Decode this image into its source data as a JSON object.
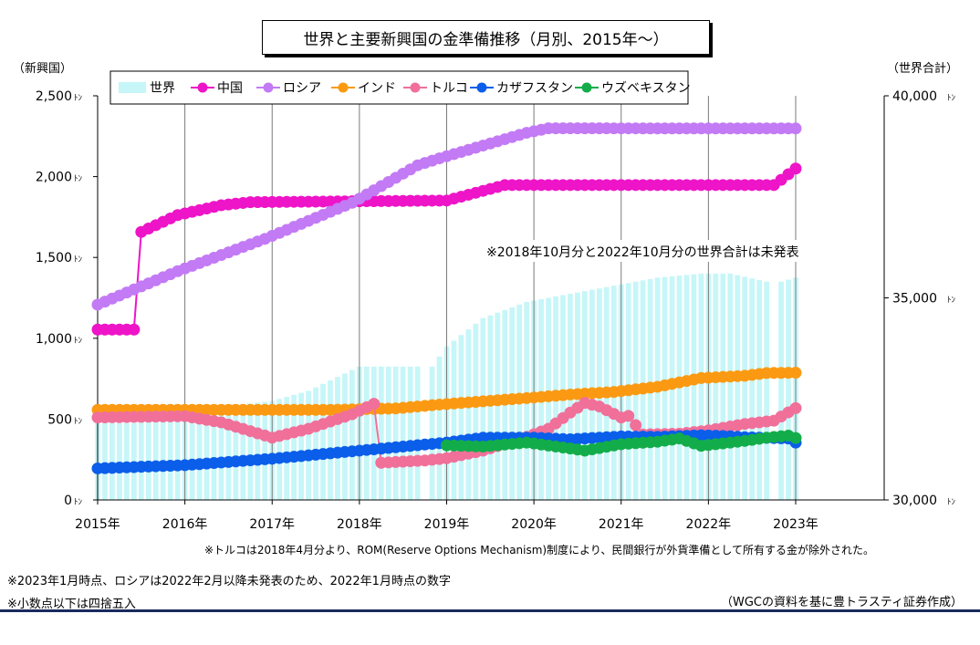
{
  "chart_data": {
    "type": "line",
    "title": "世界と主要新興国の金準備推移（月別、2015年～）",
    "y_left_label": "（新興国）",
    "y_right_label": "（世界合計）",
    "y_left_unit": "ﾄﾝ",
    "y_right_unit": "ﾄﾝ",
    "ylim_left": [
      0,
      2500
    ],
    "ylim_right": [
      30000,
      40000
    ],
    "y_left_ticks": [
      "0",
      "500",
      "1,000",
      "1,500",
      "2,000",
      "2,500"
    ],
    "y_right_ticks": [
      "30,000",
      "35,000",
      "40,000"
    ],
    "x_ticks": [
      "2015年",
      "2016年",
      "2017年",
      "2018年",
      "2019年",
      "2020年",
      "2021年",
      "2022年",
      "2023年"
    ],
    "x_range": [
      "2015-01",
      "2023-01"
    ],
    "grid": "vertical",
    "legend_position": "top",
    "bar_series": {
      "name": "世界",
      "color": "#c6f6f8",
      "axis": "right",
      "missing": [
        "2018-10",
        "2022-10"
      ],
      "anchors": [
        [
          "2015-01",
          31900
        ],
        [
          "2015-06",
          31900
        ],
        [
          "2015-07",
          32200
        ],
        [
          "2016-01",
          32150
        ],
        [
          "2016-06",
          32300
        ],
        [
          "2017-01",
          32450
        ],
        [
          "2017-06",
          32700
        ],
        [
          "2018-01",
          33300
        ],
        [
          "2018-06",
          33300
        ],
        [
          "2018-11",
          33300
        ],
        [
          "2019-01",
          33800
        ],
        [
          "2019-06",
          34500
        ],
        [
          "2019-12",
          34900
        ],
        [
          "2020-06",
          35100
        ],
        [
          "2020-12",
          35300
        ],
        [
          "2021-06",
          35500
        ],
        [
          "2021-12",
          35600
        ],
        [
          "2022-04",
          35600
        ],
        [
          "2022-09",
          35400
        ],
        [
          "2022-11",
          35400
        ],
        [
          "2023-01",
          35500
        ]
      ]
    },
    "series": [
      {
        "name": "中国",
        "color": "#ee14c8",
        "anchors": [
          [
            "2015-01",
            1054
          ],
          [
            "2015-06",
            1054
          ],
          [
            "2015-07",
            1658
          ],
          [
            "2015-12",
            1762
          ],
          [
            "2016-06",
            1823
          ],
          [
            "2016-10",
            1842
          ],
          [
            "2019-01",
            1852
          ],
          [
            "2019-09",
            1948
          ],
          [
            "2022-10",
            1948
          ],
          [
            "2022-11",
            1980
          ],
          [
            "2023-01",
            2050
          ]
        ]
      },
      {
        "name": "ロシア",
        "color": "#c37af5",
        "anchors": [
          [
            "2015-01",
            1208
          ],
          [
            "2015-12",
            1415
          ],
          [
            "2016-12",
            1615
          ],
          [
            "2017-12",
            1838
          ],
          [
            "2018-09",
            2070
          ],
          [
            "2018-12",
            2113
          ],
          [
            "2019-12",
            2271
          ],
          [
            "2020-03",
            2299
          ],
          [
            "2022-01",
            2298
          ],
          [
            "2023-01",
            2298
          ]
        ]
      },
      {
        "name": "インド",
        "color": "#fb9a12",
        "anchors": [
          [
            "2015-01",
            557
          ],
          [
            "2017-09",
            557
          ],
          [
            "2018-06",
            566
          ],
          [
            "2018-12",
            590
          ],
          [
            "2019-12",
            630
          ],
          [
            "2020-06",
            652
          ],
          [
            "2020-12",
            668
          ],
          [
            "2021-06",
            700
          ],
          [
            "2021-12",
            754
          ],
          [
            "2022-06",
            768
          ],
          [
            "2022-09",
            785
          ],
          [
            "2023-01",
            787
          ]
        ]
      },
      {
        "name": "トルコ",
        "color": "#f0709a",
        "anchors": [
          [
            "2015-01",
            510
          ],
          [
            "2016-01",
            518
          ],
          [
            "2016-06",
            480
          ],
          [
            "2017-01",
            385
          ],
          [
            "2017-06",
            440
          ],
          [
            "2017-12",
            530
          ],
          [
            "2018-03",
            595
          ],
          [
            "2018-04",
            230
          ],
          [
            "2018-10",
            244
          ],
          [
            "2019-01",
            258
          ],
          [
            "2019-06",
            305
          ],
          [
            "2019-12",
            390
          ],
          [
            "2020-03",
            440
          ],
          [
            "2020-06",
            540
          ],
          [
            "2020-08",
            600
          ],
          [
            "2020-10",
            578
          ],
          [
            "2021-01",
            510
          ],
          [
            "2021-02",
            520
          ],
          [
            "2021-04",
            405
          ],
          [
            "2021-09",
            410
          ],
          [
            "2022-01",
            430
          ],
          [
            "2022-06",
            470
          ],
          [
            "2022-10",
            490
          ],
          [
            "2023-01",
            568
          ]
        ]
      },
      {
        "name": "カザフスタン",
        "color": "#0a5eea",
        "anchors": [
          [
            "2015-01",
            195
          ],
          [
            "2016-01",
            215
          ],
          [
            "2017-01",
            255
          ],
          [
            "2018-01",
            305
          ],
          [
            "2019-01",
            355
          ],
          [
            "2019-06",
            385
          ],
          [
            "2020-01",
            385
          ],
          [
            "2020-06",
            375
          ],
          [
            "2021-01",
            393
          ],
          [
            "2021-06",
            390
          ],
          [
            "2021-12",
            400
          ],
          [
            "2022-03",
            396
          ],
          [
            "2022-06",
            388
          ],
          [
            "2022-12",
            380
          ],
          [
            "2023-01",
            355
          ]
        ]
      },
      {
        "name": "ウズベキスタン",
        "color": "#12ad4a",
        "start": "2019-01",
        "anchors": [
          [
            "2019-01",
            338
          ],
          [
            "2019-06",
            330
          ],
          [
            "2019-12",
            355
          ],
          [
            "2020-06",
            318
          ],
          [
            "2020-08",
            305
          ],
          [
            "2021-01",
            345
          ],
          [
            "2021-06",
            360
          ],
          [
            "2021-09",
            380
          ],
          [
            "2021-12",
            335
          ],
          [
            "2022-06",
            365
          ],
          [
            "2022-09",
            385
          ],
          [
            "2022-12",
            398
          ],
          [
            "2023-01",
            383
          ]
        ]
      }
    ]
  },
  "annotation": "※2018年10月分と2022年10月分の世界合計は未発表",
  "notes": {
    "turkey": "※トルコは2018年4月分より、ROM(Reserve Options Mechanism)制度により、民間銀行が外貨準備として所有する金が除外された。",
    "russia": "※2023年1月時点、ロシアは2022年2月以降未発表のため、2022年1月時点の数字",
    "rounding": "※小数点以下は四捨五入",
    "source": "（WGCの資料を基に豊トラスティ証券作成）"
  }
}
